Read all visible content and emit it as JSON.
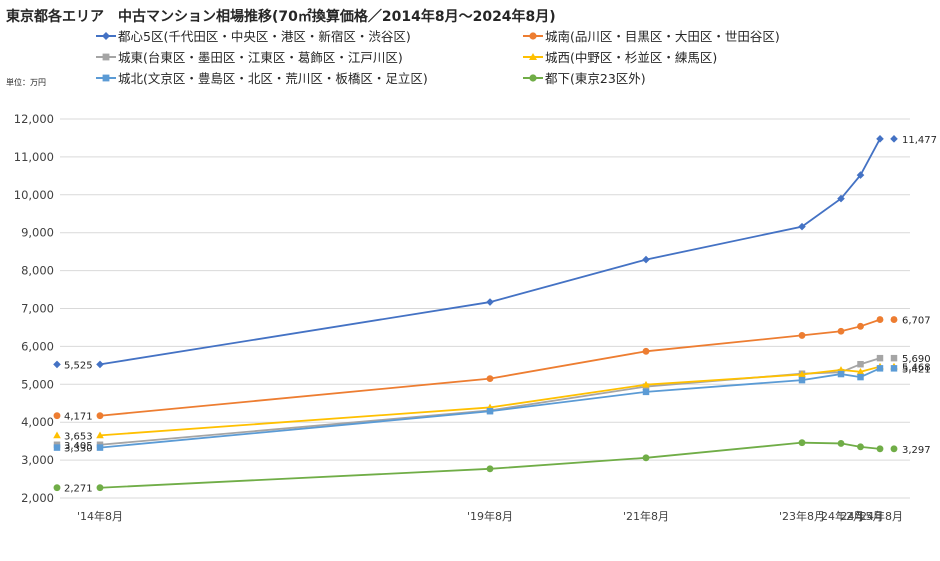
{
  "chart_data": {
    "type": "line",
    "title": "東京都各エリア　中古マンション相場推移(70㎡換算価格／2014年8月～2024年8月)",
    "unit": "単位：万円",
    "categories": [
      "'14年8月",
      "'19年8月",
      "'21年8月",
      "'23年8月",
      "'24年2月",
      "'24年5月",
      "'24年8月"
    ],
    "x_months": [
      0,
      60,
      84,
      108,
      114,
      117,
      120
    ],
    "ylim": [
      2000,
      12000
    ],
    "yticks": [
      "2,000",
      "3,000",
      "4,000",
      "5,000",
      "6,000",
      "7,000",
      "8,000",
      "9,000",
      "10,000",
      "11,000",
      "12,000"
    ],
    "ytick_values": [
      2000,
      3000,
      4000,
      5000,
      6000,
      7000,
      8000,
      9000,
      10000,
      11000,
      12000
    ],
    "grid": true,
    "legend_position": "top",
    "series": [
      {
        "name": "都心5区(千代田区・中央区・港区・新宿区・渋谷区)",
        "color": "#4472C4",
        "marker": "diamond",
        "values": [
          5525,
          7170,
          8290,
          9160,
          9900,
          10520,
          11477
        ],
        "start_label": "5,525",
        "end_label": "11,477"
      },
      {
        "name": "城南(品川区・目黒区・大田区・世田谷区)",
        "color": "#ED7D31",
        "marker": "circle",
        "values": [
          4171,
          5150,
          5870,
          6290,
          6400,
          6530,
          6707
        ],
        "start_label": "4,171",
        "end_label": "6,707"
      },
      {
        "name": "城東(台東区・墨田区・江東区・葛飾区・江戸川区)",
        "color": "#A5A5A5",
        "marker": "square",
        "values": [
          3405,
          4310,
          4940,
          5280,
          5320,
          5530,
          5690
        ],
        "start_label": "3,405",
        "end_label": "5,690"
      },
      {
        "name": "城西(中野区・杉並区・練馬区)",
        "color": "#FFC000",
        "marker": "triangle",
        "values": [
          3653,
          4390,
          4990,
          5260,
          5380,
          5330,
          5468
        ],
        "start_label": "3,653",
        "end_label": "5,468"
      },
      {
        "name": "城北(文京区・豊島区・北区・荒川区・板橋区・足立区)",
        "color": "#5B9BD5",
        "marker": "square",
        "values": [
          3330,
          4290,
          4800,
          5110,
          5270,
          5190,
          5421
        ],
        "start_label": "3,330",
        "end_label": "5,421"
      },
      {
        "name": "都下(東京23区外)",
        "color": "#70AD47",
        "marker": "circle",
        "values": [
          2271,
          2770,
          3060,
          3460,
          3440,
          3350,
          3297
        ],
        "start_label": "2,271",
        "end_label": "3,297"
      }
    ]
  }
}
